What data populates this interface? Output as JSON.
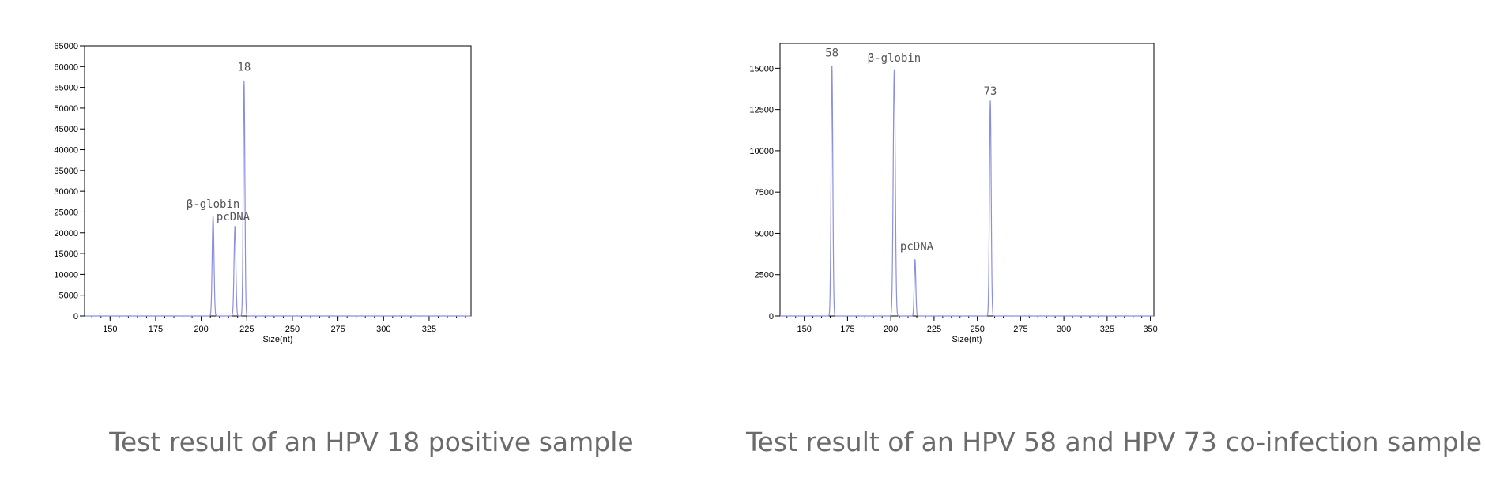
{
  "chart_data": [
    {
      "type": "line",
      "title": "",
      "xlabel": "Size(nt)",
      "ylabel": "",
      "xlim": [
        136,
        348
      ],
      "ylim": [
        0,
        65000
      ],
      "x_ticks": [
        150,
        175,
        200,
        225,
        250,
        275,
        300,
        325
      ],
      "x_tick_labels": [
        "150",
        "175",
        "200",
        "225",
        "250",
        "275",
        "300",
        "325"
      ],
      "y_ticks": [
        0,
        5000,
        10000,
        15000,
        20000,
        25000,
        30000,
        35000,
        40000,
        45000,
        50000,
        55000,
        60000,
        65000
      ],
      "y_tick_labels": [
        "0",
        "5000",
        "10000",
        "15000",
        "20000",
        "25000",
        "30000",
        "35000",
        "40000",
        "45000",
        "50000",
        "55000",
        "60000",
        "65000"
      ],
      "grid": false,
      "line_color": "#8a8fe0",
      "series": [
        {
          "peaks": [
            {
              "x": 206.5,
              "y": 24000,
              "width": 1.0
            },
            {
              "x": 218.5,
              "y": 21500,
              "width": 1.0
            },
            {
              "x": 223.5,
              "y": 56500,
              "width": 0.9
            }
          ]
        }
      ],
      "annotations": [
        {
          "text": "β-globin",
          "x": 206.5,
          "y": 26000
        },
        {
          "text": "pcDNA",
          "x": 217.5,
          "y": 23000
        },
        {
          "text": "18",
          "x": 223.5,
          "y": 59000
        }
      ],
      "caption": "Test result of an HPV 18 positive sample"
    },
    {
      "type": "line",
      "title": "",
      "xlabel": "Size(nt)",
      "ylabel": "",
      "xlim": [
        136,
        352
      ],
      "ylim": [
        0,
        16500
      ],
      "x_ticks": [
        150,
        175,
        200,
        225,
        250,
        275,
        300,
        325,
        350
      ],
      "x_tick_labels": [
        "150",
        "175",
        "200",
        "225",
        "250",
        "275",
        "300",
        "325",
        "350"
      ],
      "y_ticks": [
        0,
        2500,
        5000,
        7500,
        10000,
        12500,
        15000
      ],
      "y_tick_labels": [
        "0",
        "2500",
        "5000",
        "7500",
        "10000",
        "12500",
        "15000"
      ],
      "grid": false,
      "line_color": "#8a8fe0",
      "series": [
        {
          "peaks": [
            {
              "x": 166,
              "y": 15100,
              "width": 1.0
            },
            {
              "x": 202,
              "y": 14900,
              "width": 1.2
            },
            {
              "x": 214,
              "y": 3400,
              "width": 0.9
            },
            {
              "x": 257.5,
              "y": 13000,
              "width": 1.0
            }
          ]
        }
      ],
      "annotations": [
        {
          "text": "58",
          "x": 166,
          "y": 15700
        },
        {
          "text": "β-globin",
          "x": 202,
          "y": 15400
        },
        {
          "text": "pcDNA",
          "x": 215,
          "y": 4000
        },
        {
          "text": "73",
          "x": 257.5,
          "y": 13400
        }
      ],
      "caption": "Test result of an HPV 58 and HPV 73 co-infection sample"
    }
  ]
}
